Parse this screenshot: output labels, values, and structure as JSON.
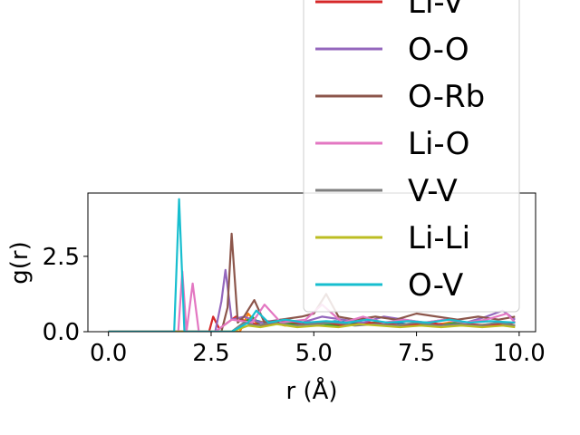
{
  "chart_data": {
    "type": "line",
    "title": "",
    "xlabel": "r (Å)",
    "ylabel": "g(r)",
    "xlim": [
      -0.5,
      10.4
    ],
    "ylim": [
      0,
      4.6
    ],
    "xticks": [
      0.0,
      2.5,
      5.0,
      7.5,
      10.0
    ],
    "xtick_labels": [
      "0.0",
      "2.5",
      "5.0",
      "7.5",
      "10.0"
    ],
    "yticks": [
      0.0,
      2.5
    ],
    "ytick_labels": [
      "0.0",
      "2.5"
    ],
    "grid": false,
    "legend_position": "upper-right",
    "series": [
      {
        "name": "",
        "color": "#1f77b4",
        "x": [
          0,
          1.0,
          2.0,
          3.0,
          3.2,
          3.5,
          3.8,
          4.2,
          4.6,
          5.0,
          5.5,
          6.0,
          6.5,
          7.0,
          7.5,
          8.0,
          8.5,
          9.0,
          9.5,
          9.9
        ],
        "y": [
          0,
          0,
          0,
          0,
          0.15,
          0.4,
          0.3,
          0.25,
          0.3,
          0.2,
          0.35,
          0.3,
          0.25,
          0.3,
          0.2,
          0.25,
          0.3,
          0.2,
          0.25,
          0.2
        ]
      },
      {
        "name": "",
        "color": "#ff7f0e",
        "x": [
          0,
          1.0,
          2.0,
          3.2,
          3.4,
          3.6,
          3.9,
          4.3,
          4.8,
          5.3,
          5.8,
          6.3,
          6.8,
          7.3,
          7.8,
          8.3,
          8.8,
          9.3,
          9.9
        ],
        "y": [
          0,
          0,
          0,
          0,
          0.6,
          0.3,
          0.35,
          0.2,
          0.3,
          0.25,
          0.2,
          0.3,
          0.2,
          0.25,
          0.2,
          0.3,
          0.2,
          0.25,
          0.2
        ]
      },
      {
        "name": "",
        "color": "#2ca02c",
        "x": [
          0,
          1.0,
          2.0,
          3.0,
          3.3,
          3.5,
          3.7,
          4.0,
          4.5,
          5.0,
          5.5,
          6.0,
          6.5,
          7.0,
          7.5,
          8.0,
          8.5,
          9.0,
          9.5,
          9.9
        ],
        "y": [
          0,
          0,
          0,
          0,
          0.3,
          0.5,
          0.2,
          0.35,
          0.25,
          0.3,
          0.2,
          0.25,
          0.3,
          0.2,
          0.25,
          0.2,
          0.3,
          0.2,
          0.25,
          0.2
        ]
      },
      {
        "name": "Li-V",
        "color": "#d62728",
        "x": [
          0,
          1.0,
          2.0,
          2.45,
          2.55,
          2.7,
          2.9,
          3.1,
          3.4,
          3.8,
          4.3,
          4.8,
          5.3,
          5.8,
          6.3,
          6.8,
          7.3,
          7.8,
          8.3,
          8.8,
          9.3,
          9.9
        ],
        "y": [
          0,
          0,
          0,
          0,
          0.5,
          0.1,
          0.3,
          0.5,
          0.3,
          0.2,
          0.35,
          0.25,
          0.3,
          0.2,
          0.3,
          0.25,
          0.2,
          0.3,
          0.2,
          0.25,
          0.2,
          0.3
        ]
      },
      {
        "name": "O-O",
        "color": "#9467bd",
        "x": [
          0,
          1.0,
          2.0,
          2.6,
          2.75,
          2.85,
          3.0,
          3.3,
          3.7,
          4.2,
          4.7,
          5.2,
          5.7,
          6.2,
          6.7,
          7.2,
          7.7,
          8.2,
          8.7,
          9.2,
          9.6,
          9.9
        ],
        "y": [
          0,
          0,
          0,
          0,
          1.0,
          2.05,
          0.4,
          0.5,
          0.3,
          0.4,
          0.3,
          0.5,
          0.4,
          0.3,
          0.5,
          0.4,
          0.3,
          0.4,
          0.3,
          0.5,
          0.7,
          0.4
        ]
      },
      {
        "name": "O-Rb",
        "color": "#8c564b",
        "x": [
          0,
          1.0,
          2.0,
          2.75,
          2.9,
          3.0,
          3.15,
          3.3,
          3.55,
          3.8,
          4.2,
          4.7,
          5.0,
          5.3,
          5.6,
          6.0,
          6.5,
          7.0,
          7.5,
          8.0,
          8.5,
          9.0,
          9.5,
          9.9
        ],
        "y": [
          0,
          0,
          0,
          0,
          0.8,
          3.25,
          0.3,
          0.5,
          1.05,
          0.3,
          0.4,
          0.5,
          0.6,
          1.25,
          0.5,
          0.4,
          0.5,
          0.4,
          0.6,
          0.5,
          0.4,
          0.5,
          0.4,
          0.5
        ]
      },
      {
        "name": "Li-O",
        "color": "#e377c2",
        "x": [
          0,
          1.0,
          1.7,
          1.8,
          1.9,
          2.05,
          2.2,
          2.6,
          3.0,
          3.5,
          3.8,
          4.2,
          4.8,
          5.2,
          5.7,
          6.2,
          6.7,
          7.2,
          7.7,
          8.2,
          8.7,
          9.2,
          9.7,
          9.9
        ],
        "y": [
          0,
          0,
          0,
          2.0,
          0,
          1.6,
          0,
          0,
          0.4,
          0.3,
          0.9,
          0.3,
          0.4,
          0.9,
          0.3,
          0.5,
          0.3,
          0.4,
          0.3,
          0.4,
          0.3,
          0.4,
          0.6,
          0.3
        ]
      },
      {
        "name": "V-V",
        "color": "#7f7f7f",
        "x": [
          0,
          1.0,
          2.0,
          3.0,
          3.3,
          3.6,
          4.0,
          4.5,
          5.0,
          5.5,
          6.0,
          6.5,
          7.0,
          7.5,
          8.0,
          8.5,
          9.0,
          9.5,
          9.9
        ],
        "y": [
          0,
          0,
          0,
          0,
          0.3,
          0.2,
          0.3,
          0.2,
          0.25,
          0.3,
          0.2,
          0.25,
          0.2,
          0.3,
          0.2,
          0.25,
          0.2,
          0.3,
          0.2
        ]
      },
      {
        "name": "Li-Li",
        "color": "#bcbd22",
        "x": [
          0,
          1.0,
          2.0,
          3.0,
          3.4,
          3.7,
          4.1,
          4.6,
          5.1,
          5.6,
          6.1,
          6.6,
          7.1,
          7.6,
          8.1,
          8.6,
          9.1,
          9.6,
          9.9
        ],
        "y": [
          0,
          0,
          0,
          0,
          0.2,
          0.15,
          0.25,
          0.15,
          0.2,
          0.15,
          0.25,
          0.2,
          0.15,
          0.2,
          0.15,
          0.2,
          0.15,
          0.2,
          0.15
        ]
      },
      {
        "name": "O-V",
        "color": "#17becf",
        "x": [
          0,
          1.0,
          1.6,
          1.72,
          1.85,
          2.0,
          3.0,
          3.4,
          3.6,
          3.9,
          4.3,
          4.8,
          5.3,
          5.8,
          6.3,
          6.8,
          7.3,
          7.8,
          8.3,
          8.8,
          9.3,
          9.9
        ],
        "y": [
          0,
          0,
          0,
          4.4,
          0,
          0,
          0,
          0.3,
          0.7,
          0.3,
          0.4,
          0.3,
          0.35,
          0.3,
          0.4,
          0.3,
          0.35,
          0.3,
          0.4,
          0.3,
          0.35,
          0.3
        ]
      }
    ]
  }
}
